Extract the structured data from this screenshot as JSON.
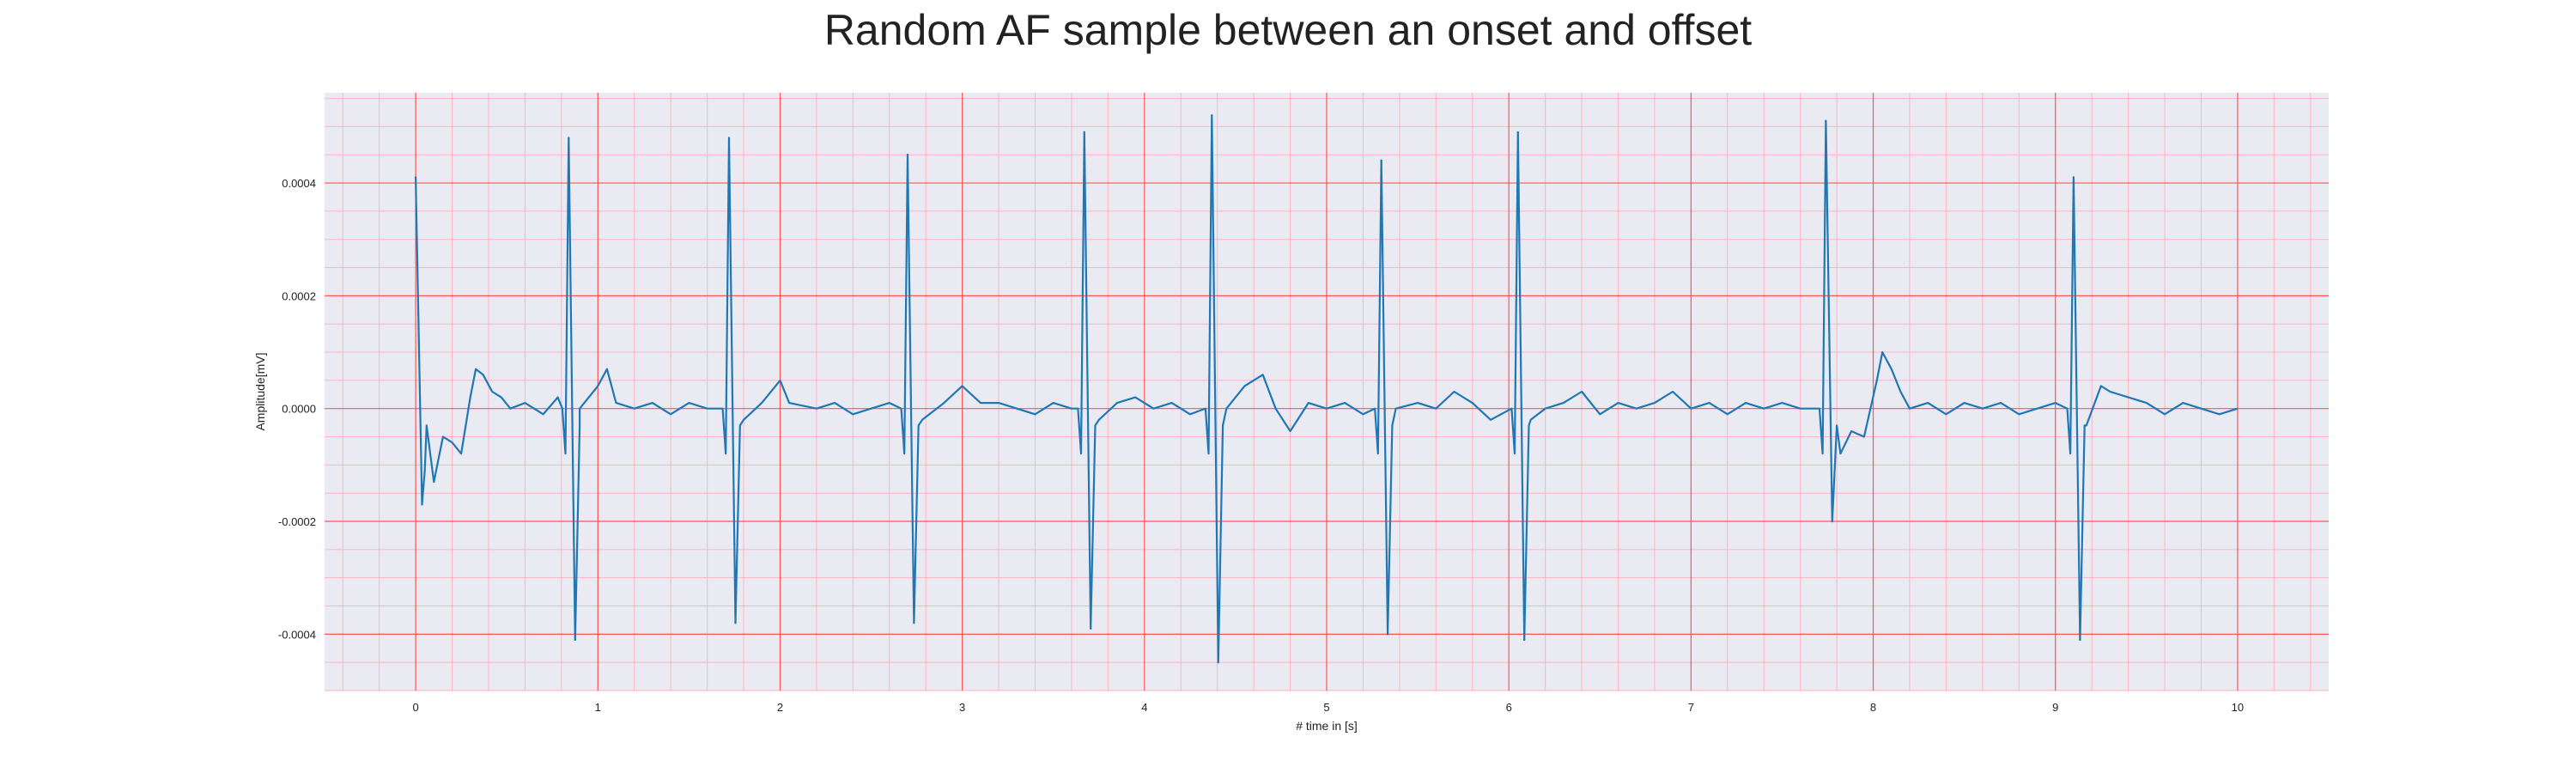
{
  "chart_data": {
    "type": "line",
    "title": "Random AF sample between an onset and offset",
    "xlabel": "# time in [s]",
    "ylabel": "Amplitude[mV]",
    "xlim": [
      -0.5,
      10.5
    ],
    "ylim": [
      -0.0005,
      0.00056
    ],
    "x_ticks": [
      0,
      1,
      2,
      3,
      4,
      5,
      6,
      7,
      8,
      9,
      10
    ],
    "x_tick_labels": [
      "0",
      "1",
      "2",
      "3",
      "4",
      "5",
      "6",
      "7",
      "8",
      "9",
      "10"
    ],
    "y_ticks": [
      -0.0004,
      -0.0002,
      0.0,
      0.0002,
      0.0004
    ],
    "y_tick_labels": [
      "-0.0004",
      "-0.0002",
      "0.0000",
      "0.0002",
      "0.0004"
    ],
    "grid": true,
    "colors": {
      "line": "#1f77b4",
      "plot_background": "#eaeaf2",
      "major_grid": "#ff5555",
      "minor_grid": "#ffb3c1"
    },
    "series": [
      {
        "beats": [
          {
            "t": 0.0,
            "r": 0.00041,
            "s": -0.00017
          },
          {
            "t": 0.84,
            "r": 0.00048,
            "s": -0.00041
          },
          {
            "t": 1.72,
            "r": 0.00048,
            "s": -0.00038
          },
          {
            "t": 2.7,
            "r": 0.00045,
            "s": -0.00038
          },
          {
            "t": 3.67,
            "r": 0.00049,
            "s": -0.00039
          },
          {
            "t": 4.37,
            "r": 0.00052,
            "s": -0.00045
          },
          {
            "t": 5.3,
            "r": 0.00044,
            "s": -0.0004
          },
          {
            "t": 6.05,
            "r": 0.00049,
            "s": -0.00041
          },
          {
            "t": 7.74,
            "r": 0.00051,
            "s": -0.0002
          },
          {
            "t": 9.1,
            "r": 0.00041,
            "s": -0.00041
          }
        ],
        "points": [
          [
            0.05,
            -0.00011
          ],
          [
            0.1,
            -0.00013
          ],
          [
            0.15,
            -5e-05
          ],
          [
            0.2,
            -6e-05
          ],
          [
            0.25,
            -8e-05
          ],
          [
            0.3,
            2e-05
          ],
          [
            0.33,
            7e-05
          ],
          [
            0.37,
            6e-05
          ],
          [
            0.42,
            3e-05
          ],
          [
            0.47,
            2e-05
          ],
          [
            0.52,
            0.0
          ],
          [
            0.6,
            1e-05
          ],
          [
            0.7,
            -1e-05
          ],
          [
            0.78,
            2e-05
          ],
          [
            0.9,
            0.0
          ],
          [
            1.0,
            4e-05
          ],
          [
            1.05,
            7e-05
          ],
          [
            1.1,
            1e-05
          ],
          [
            1.2,
            0.0
          ],
          [
            1.3,
            1e-05
          ],
          [
            1.4,
            -1e-05
          ],
          [
            1.5,
            1e-05
          ],
          [
            1.6,
            0.0
          ],
          [
            1.8,
            -2e-05
          ],
          [
            1.9,
            1e-05
          ],
          [
            2.0,
            5e-05
          ],
          [
            2.05,
            1e-05
          ],
          [
            2.2,
            0.0
          ],
          [
            2.3,
            1e-05
          ],
          [
            2.4,
            -1e-05
          ],
          [
            2.5,
            0.0
          ],
          [
            2.6,
            1e-05
          ],
          [
            2.78,
            -2e-05
          ],
          [
            2.9,
            1e-05
          ],
          [
            3.0,
            4e-05
          ],
          [
            3.1,
            1e-05
          ],
          [
            3.2,
            1e-05
          ],
          [
            3.3,
            0.0
          ],
          [
            3.4,
            -1e-05
          ],
          [
            3.5,
            1e-05
          ],
          [
            3.6,
            0.0
          ],
          [
            3.75,
            -2e-05
          ],
          [
            3.85,
            1e-05
          ],
          [
            3.95,
            2e-05
          ],
          [
            4.05,
            0.0
          ],
          [
            4.15,
            1e-05
          ],
          [
            4.25,
            -1e-05
          ],
          [
            4.45,
            0.0
          ],
          [
            4.55,
            4e-05
          ],
          [
            4.65,
            6e-05
          ],
          [
            4.72,
            0.0
          ],
          [
            4.8,
            -4e-05
          ],
          [
            4.9,
            1e-05
          ],
          [
            5.0,
            0.0
          ],
          [
            5.1,
            1e-05
          ],
          [
            5.2,
            -1e-05
          ],
          [
            5.38,
            0.0
          ],
          [
            5.5,
            1e-05
          ],
          [
            5.6,
            0.0
          ],
          [
            5.7,
            3e-05
          ],
          [
            5.8,
            1e-05
          ],
          [
            5.9,
            -2e-05
          ],
          [
            6.12,
            -2e-05
          ],
          [
            6.2,
            0.0
          ],
          [
            6.3,
            1e-05
          ],
          [
            6.4,
            3e-05
          ],
          [
            6.5,
            -1e-05
          ],
          [
            6.6,
            1e-05
          ],
          [
            6.7,
            0.0
          ],
          [
            6.8,
            1e-05
          ],
          [
            6.9,
            3e-05
          ],
          [
            7.0,
            0.0
          ],
          [
            7.1,
            1e-05
          ],
          [
            7.2,
            -1e-05
          ],
          [
            7.3,
            1e-05
          ],
          [
            7.4,
            0.0
          ],
          [
            7.5,
            1e-05
          ],
          [
            7.6,
            0.0
          ],
          [
            7.82,
            -8e-05
          ],
          [
            7.88,
            -4e-05
          ],
          [
            7.95,
            -5e-05
          ],
          [
            8.02,
            5e-05
          ],
          [
            8.05,
            0.0001
          ],
          [
            8.1,
            7e-05
          ],
          [
            8.15,
            3e-05
          ],
          [
            8.2,
            0.0
          ],
          [
            8.3,
            1e-05
          ],
          [
            8.4,
            -1e-05
          ],
          [
            8.5,
            1e-05
          ],
          [
            8.6,
            0.0
          ],
          [
            8.7,
            1e-05
          ],
          [
            8.8,
            -1e-05
          ],
          [
            8.9,
            0.0
          ],
          [
            9.0,
            1e-05
          ],
          [
            9.17,
            -3e-05
          ],
          [
            9.25,
            4e-05
          ],
          [
            9.3,
            3e-05
          ],
          [
            9.4,
            2e-05
          ],
          [
            9.5,
            1e-05
          ],
          [
            9.6,
            -1e-05
          ],
          [
            9.7,
            1e-05
          ],
          [
            9.8,
            0.0
          ],
          [
            9.9,
            -1e-05
          ],
          [
            10.0,
            0.0
          ]
        ]
      }
    ]
  }
}
